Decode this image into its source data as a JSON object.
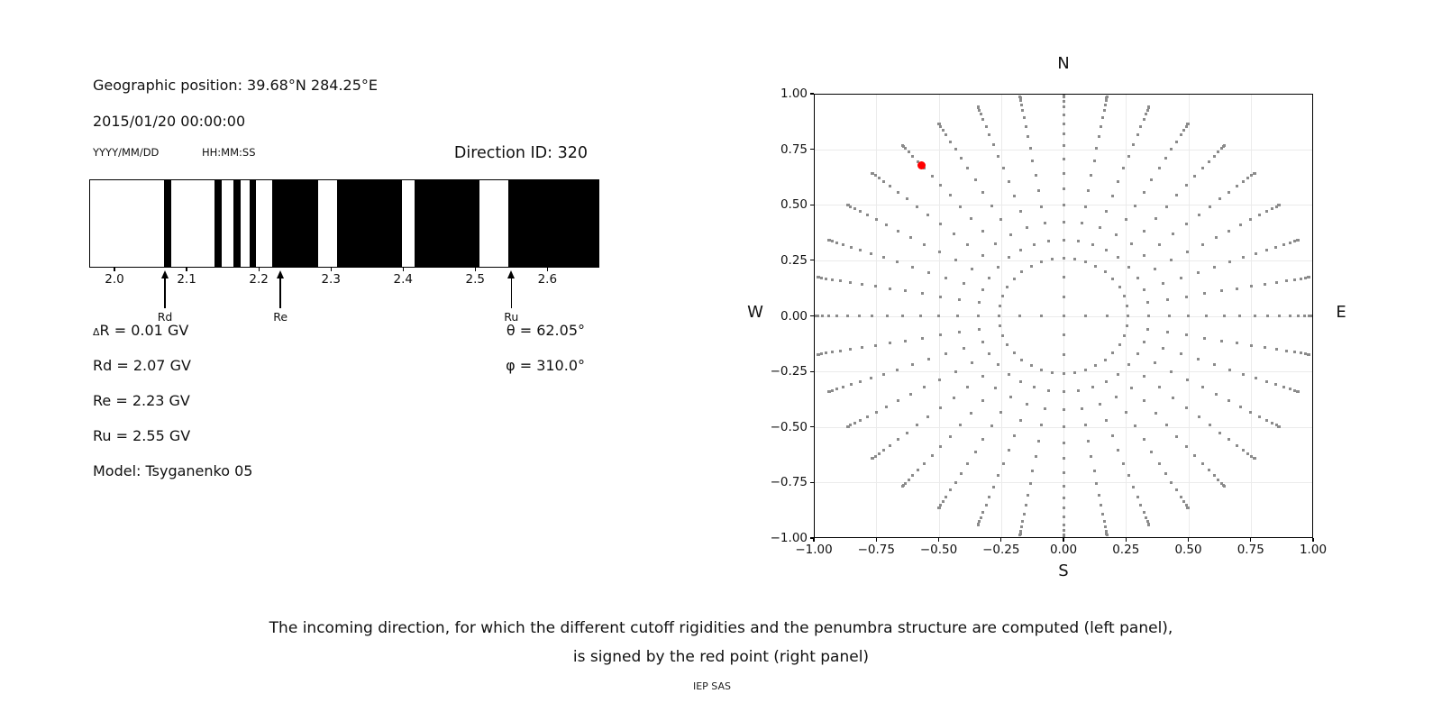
{
  "left_panel": {
    "geo_position": "Geographic position: 39.68°N 284.25°E",
    "datetime": "2015/01/20 00:00:00",
    "date_format_hint": "YYYY/MM/DD",
    "time_format_hint": "HH:MM:SS",
    "direction_id": "Direction ID: 320",
    "values": {
      "delta_symbol": "Δ",
      "delta_r_rest": "R = 0.01 GV",
      "rd": "Rd = 2.07 GV",
      "re": "Re = 2.23 GV",
      "ru": "Ru = 2.55 GV",
      "model": "Model: Tsyganenko 05",
      "theta": "θ = 62.05°",
      "phi": "φ = 310.0°"
    }
  },
  "right_panel": {
    "compass": {
      "top": "N",
      "bottom": "S",
      "left": "W",
      "right": "E"
    }
  },
  "caption": {
    "line1": "The incoming direction, for which the different cutoff rigidities and the penumbra structure are computed (left panel),",
    "line2": "is signed by the red point (right panel)",
    "footer": "IEP SAS"
  },
  "chart_data": [
    {
      "type": "bar",
      "name": "penumbra-structure",
      "description": "Cosmic ray penumbra: black bands = forbidden rigidity ranges (GV), white = allowed",
      "xlim": [
        1.965,
        2.672
      ],
      "xtick_values": [
        2.0,
        2.1,
        2.2,
        2.3,
        2.4,
        2.5,
        2.6
      ],
      "xtick_labels": [
        "2.0",
        "2.1",
        "2.2",
        "2.3",
        "2.4",
        "2.5",
        "2.6"
      ],
      "forbidden_bands_gv": [
        [
          2.067,
          2.078
        ],
        [
          2.138,
          2.148
        ],
        [
          2.164,
          2.173
        ],
        [
          2.186,
          2.195
        ],
        [
          2.217,
          2.281
        ],
        [
          2.307,
          2.397
        ],
        [
          2.415,
          2.505
        ],
        [
          2.544,
          2.672
        ]
      ],
      "arrows": [
        {
          "label": "Rd",
          "value": 2.07
        },
        {
          "label": "Re",
          "value": 2.23
        },
        {
          "label": "Ru",
          "value": 2.55
        }
      ],
      "cutoffs_gv": {
        "delta_r": 0.01,
        "rd": 2.07,
        "re": 2.23,
        "ru": 2.55
      }
    },
    {
      "type": "scatter",
      "name": "incoming-direction-grid",
      "xlim": [
        -1,
        1
      ],
      "ylim": [
        -1,
        1
      ],
      "xtick_values": [
        -1.0,
        -0.75,
        -0.5,
        -0.25,
        0.0,
        0.25,
        0.5,
        0.75,
        1.0
      ],
      "xtick_labels": [
        "−1.00",
        "−0.75",
        "−0.50",
        "−0.25",
        "0.00",
        "0.25",
        "0.50",
        "0.75",
        "1.00"
      ],
      "ytick_values": [
        1.0,
        0.75,
        0.5,
        0.25,
        0.0,
        -0.25,
        -0.5,
        -0.75,
        -1.0
      ],
      "ytick_labels": [
        "1.00",
        "0.75",
        "0.50",
        "0.25",
        "0.00",
        "−0.25",
        "−0.50",
        "−0.75",
        "−1.00"
      ],
      "grid": true,
      "gray_grid": {
        "radius_mapping": "sin(zenith)",
        "azimuth_step_deg": 10,
        "zenith_min_deg": 15,
        "zenith_max_deg": 90,
        "zenith_step_deg": 5,
        "cardinal_extra_zenith_deg": [
          5,
          10
        ],
        "center_point": true
      },
      "red_point": {
        "x": -0.568,
        "y": 0.677,
        "theta_deg": 62.05,
        "phi_deg": 310.0
      },
      "colors": {
        "dots": "#8b8b8b",
        "red_point": "#ff0000",
        "grid_lines": "#ebebeb",
        "axes": "#000000"
      }
    }
  ]
}
